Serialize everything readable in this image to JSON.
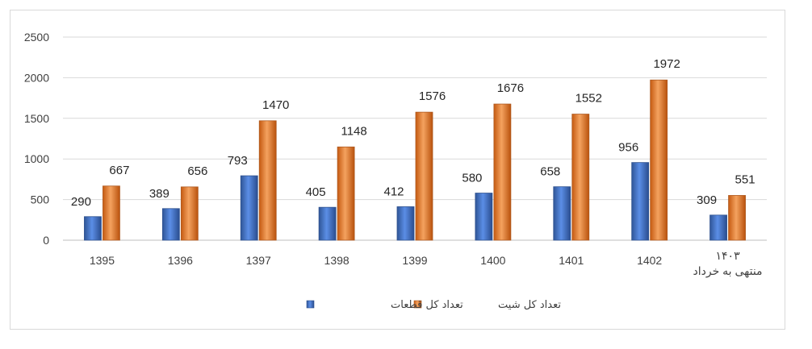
{
  "chart_data": {
    "type": "bar",
    "categories": [
      "1395",
      "1396",
      "1397",
      "1398",
      "1399",
      "1400",
      "1401",
      "1402",
      "۱۴۰۳\nمنتهی به خرداد"
    ],
    "series": [
      {
        "name": "تعداد کل قطعات",
        "color": "#4472c4",
        "values": [
          290,
          389,
          793,
          405,
          412,
          580,
          658,
          956,
          309
        ]
      },
      {
        "name": "تعداد  کل شیت",
        "color": "#ed7d31",
        "values": [
          667,
          656,
          1470,
          1148,
          1576,
          1676,
          1552,
          1972,
          551
        ]
      }
    ],
    "yticks": [
      0,
      500,
      1000,
      1500,
      2000,
      2500
    ],
    "ylim": [
      0,
      2500
    ],
    "grid": true,
    "legend_position": "bottom",
    "title": "",
    "xlabel": "",
    "ylabel": ""
  }
}
